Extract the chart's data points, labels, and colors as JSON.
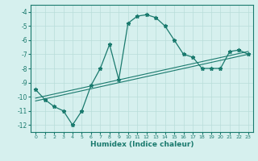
{
  "line1_x": [
    0,
    1,
    2,
    3,
    4,
    5,
    6,
    7,
    8,
    9,
    10,
    11,
    12,
    13,
    14,
    15,
    16,
    17,
    18,
    19,
    20,
    21,
    22,
    23
  ],
  "line1_y": [
    -9.5,
    -10.2,
    -10.7,
    -11.0,
    -12.0,
    -11.0,
    -9.2,
    -8.0,
    -6.3,
    -8.8,
    -4.8,
    -4.3,
    -4.2,
    -4.4,
    -5.0,
    -6.0,
    -7.0,
    -7.2,
    -8.0,
    -8.0,
    -8.0,
    -6.8,
    -6.7,
    -7.0
  ],
  "line2_x": [
    0,
    23
  ],
  "line2_y": [
    -10.3,
    -7.0
  ],
  "line3_x": [
    0,
    23
  ],
  "line3_y": [
    -10.1,
    -6.8
  ],
  "line_color": "#1a7a6e",
  "bg_color": "#d6f0ee",
  "grid_color": "#b8ddd9",
  "xlabel": "Humidex (Indice chaleur)",
  "ylim": [
    -12.5,
    -3.5
  ],
  "xlim": [
    -0.5,
    23.5
  ],
  "yticks": [
    -12,
    -11,
    -10,
    -9,
    -8,
    -7,
    -6,
    -5,
    -4
  ],
  "xticks": [
    0,
    1,
    2,
    3,
    4,
    5,
    6,
    7,
    8,
    9,
    10,
    11,
    12,
    13,
    14,
    15,
    16,
    17,
    18,
    19,
    20,
    21,
    22,
    23
  ]
}
